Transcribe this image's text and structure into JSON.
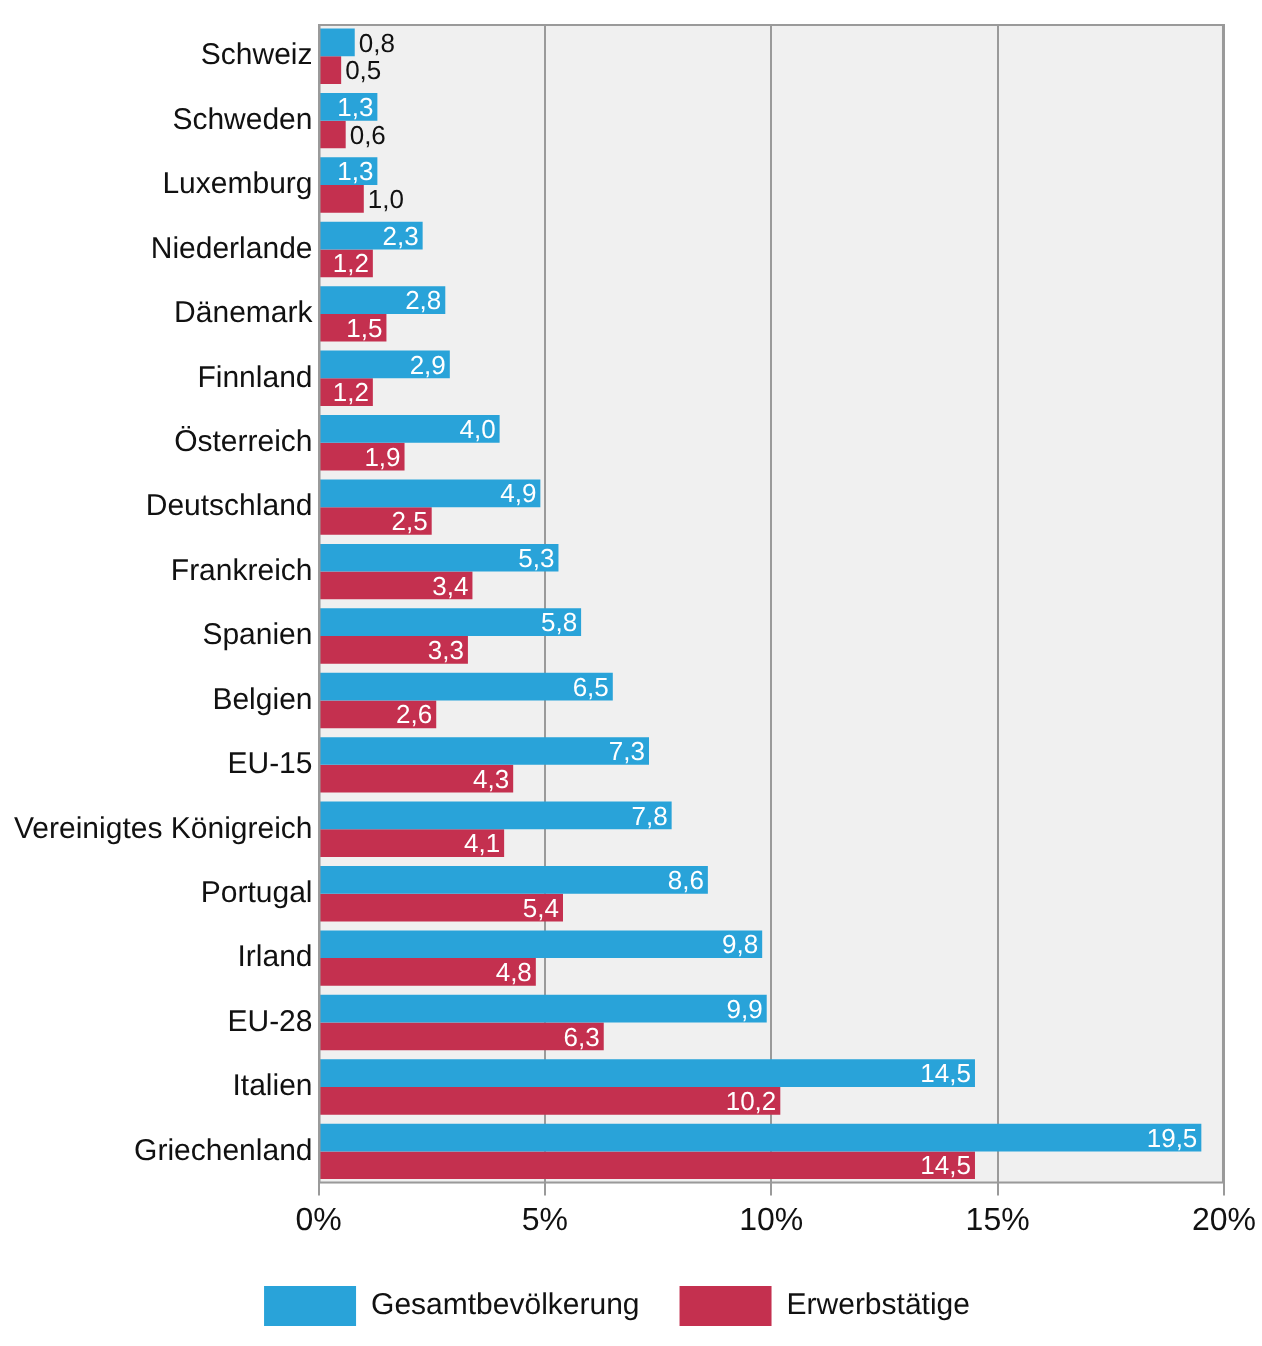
{
  "chart_data": {
    "type": "bar",
    "orientation": "horizontal",
    "categories": [
      "Schweiz",
      "Schweden",
      "Luxemburg",
      "Niederlande",
      "Dänemark",
      "Finnland",
      "Österreich",
      "Deutschland",
      "Frankreich",
      "Spanien",
      "Belgien",
      "EU-15",
      "Vereinigtes Königreich",
      "Portugal",
      "Irland",
      "EU-28",
      "Italien",
      "Griechenland"
    ],
    "series": [
      {
        "name": "Gesamtbevölkerung",
        "color": "#29a3d9",
        "values": [
          0.8,
          1.3,
          1.3,
          2.3,
          2.8,
          2.9,
          4.0,
          4.9,
          5.3,
          5.8,
          6.5,
          7.3,
          7.8,
          8.6,
          9.8,
          9.9,
          14.5,
          19.5
        ],
        "value_labels": [
          "0,8",
          "1,3",
          "1,3",
          "2,3",
          "2,8",
          "2,9",
          "4,0",
          "4,9",
          "5,3",
          "5,8",
          "6,5",
          "7,3",
          "7,8",
          "8,6",
          "9,8",
          "9,9",
          "14,5",
          "19,5"
        ]
      },
      {
        "name": "Erwerbstätige",
        "color": "#c4304f",
        "values": [
          0.5,
          0.6,
          1.0,
          1.2,
          1.5,
          1.2,
          1.9,
          2.5,
          3.4,
          3.3,
          2.6,
          4.3,
          4.1,
          5.4,
          4.8,
          6.3,
          10.2,
          14.5
        ],
        "value_labels": [
          "0,5",
          "0,6",
          "1,0",
          "1,2",
          "1,5",
          "1,2",
          "1,9",
          "2,5",
          "3,4",
          "3,3",
          "2,6",
          "4,3",
          "4,1",
          "5,4",
          "4,8",
          "6,3",
          "10,2",
          "14,5"
        ]
      }
    ],
    "xlim": [
      0,
      20
    ],
    "xticks": [
      {
        "value": 0,
        "label": "0%"
      },
      {
        "value": 5,
        "label": "5%"
      },
      {
        "value": 10,
        "label": "10%"
      },
      {
        "value": 15,
        "label": "15%"
      },
      {
        "value": 20,
        "label": "20%"
      }
    ],
    "grid": "x",
    "legend": "bottom"
  }
}
